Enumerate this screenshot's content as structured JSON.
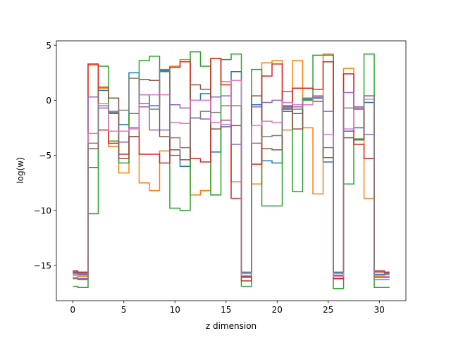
{
  "chart_data": {
    "type": "line",
    "style": "step",
    "xlabel": "z dimension",
    "ylabel": "log(w)",
    "xlim": [
      -1.6,
      32.6
    ],
    "ylim": [
      -18.2,
      5.4
    ],
    "x_ticks": [
      0,
      5,
      10,
      15,
      20,
      25,
      30
    ],
    "y_ticks": [
      -15,
      -10,
      -5,
      0,
      5
    ],
    "grid": false,
    "legend": "none",
    "x": [
      0,
      1,
      2,
      3,
      4,
      5,
      6,
      7,
      8,
      9,
      10,
      11,
      12,
      13,
      14,
      15,
      16,
      17,
      18,
      19,
      20,
      21,
      22,
      23,
      24,
      25,
      26,
      27,
      28,
      29,
      30,
      31
    ],
    "series": [
      {
        "color": "#1f77b4",
        "values": [
          -15.7,
          -15.8,
          -6.1,
          0.9,
          -1.2,
          -2.2,
          2.5,
          0.5,
          -0.5,
          2.7,
          -5.0,
          -6.0,
          0.0,
          0.6,
          -4.7,
          -2.4,
          2.6,
          -15.7,
          -0.4,
          -5.5,
          -5.7,
          -0.8,
          -1.2,
          0.1,
          0.2,
          -5.6,
          -15.7,
          -2.8,
          -2.5,
          -0.2,
          -15.8,
          -15.8
        ]
      },
      {
        "color": "#ff7f0e",
        "values": [
          -15.9,
          -16.0,
          3.2,
          1.1,
          -4.2,
          -6.6,
          -1.2,
          -7.5,
          -8.2,
          -4.6,
          3.1,
          3.7,
          -8.6,
          -8.2,
          3.8,
          1.7,
          -7.4,
          -16.0,
          -7.6,
          3.4,
          3.6,
          -2.7,
          3.6,
          -2.5,
          -8.5,
          4.2,
          -16.0,
          2.9,
          -0.8,
          -8.9,
          -16.0,
          -16.1
        ]
      },
      {
        "color": "#2ca02c",
        "values": [
          -16.9,
          -17.0,
          -10.3,
          3.1,
          -3.7,
          -5.7,
          -1.2,
          3.6,
          4.0,
          2.6,
          -9.8,
          -10.0,
          4.4,
          3.1,
          -8.6,
          3.7,
          4.2,
          -16.9,
          2.8,
          -9.6,
          -9.6,
          0.8,
          -8.3,
          0.0,
          4.1,
          4.1,
          -17.1,
          -7.6,
          -3.5,
          4.2,
          -17.0,
          -17.0
        ]
      },
      {
        "color": "#d62728",
        "values": [
          -15.5,
          -15.6,
          3.3,
          -2.7,
          -3.9,
          -4.9,
          -3.3,
          -4.9,
          -4.9,
          -5.7,
          3.0,
          3.5,
          -5.3,
          -5.6,
          3.8,
          1.4,
          -8.9,
          -16.4,
          -5.8,
          2.2,
          3.3,
          -1.0,
          1.1,
          1.1,
          1.0,
          3.5,
          -16.2,
          2.4,
          -4.0,
          -5.3,
          -15.5,
          -15.6
        ]
      },
      {
        "color": "#9467bd",
        "values": [
          -16.1,
          -16.2,
          0.3,
          -0.7,
          -1.0,
          -3.8,
          -2.5,
          -0.6,
          -2.7,
          -2.7,
          -0.4,
          -0.7,
          -1.6,
          -1.7,
          0.3,
          0.4,
          -4.0,
          -16.1,
          -0.6,
          -0.2,
          0.0,
          -0.6,
          -0.6,
          0.2,
          0.3,
          -1.0,
          -15.9,
          0.7,
          -0.6,
          -3.1,
          -16.1,
          -16.1
        ]
      },
      {
        "color": "#8c564b",
        "values": [
          -15.6,
          -15.7,
          -4.4,
          1.2,
          0.2,
          -5.3,
          -3.3,
          1.9,
          1.8,
          -3.3,
          -4.5,
          -5.4,
          1.4,
          1.0,
          -2.6,
          -1.8,
          -2.3,
          -16.0,
          0.4,
          -4.4,
          -4.5,
          -0.5,
          -2.6,
          0.2,
          -0.1,
          -5.2,
          -15.9,
          -3.4,
          -3.6,
          0.4,
          -15.6,
          -15.7
        ]
      },
      {
        "color": "#e377c2",
        "values": [
          -15.8,
          -15.9,
          -3.0,
          -0.3,
          -2.8,
          -2.8,
          -2.6,
          0.5,
          0.5,
          0.5,
          -2.0,
          -2.1,
          0.0,
          0.0,
          -2.0,
          -2.2,
          1.8,
          -15.9,
          -2.3,
          -1.9,
          -2.0,
          -0.2,
          -0.4,
          -0.4,
          0.3,
          -3.1,
          -16.0,
          -2.6,
          -0.7,
          0.1,
          -15.9,
          -16.0
        ]
      },
      {
        "color": "#7f7f7f",
        "values": [
          -16.2,
          -16.3,
          -3.9,
          -0.5,
          -1.1,
          -0.9,
          2.0,
          -0.3,
          -0.8,
          2.8,
          -3.4,
          -4.3,
          -1.6,
          -1.0,
          -1.1,
          -0.5,
          -0.5,
          -15.6,
          -3.9,
          -3.3,
          -3.2,
          -0.7,
          -0.8,
          0.2,
          0.4,
          -4.3,
          -15.6,
          -0.7,
          -0.8,
          0.4,
          -16.3,
          -16.3
        ]
      }
    ]
  }
}
